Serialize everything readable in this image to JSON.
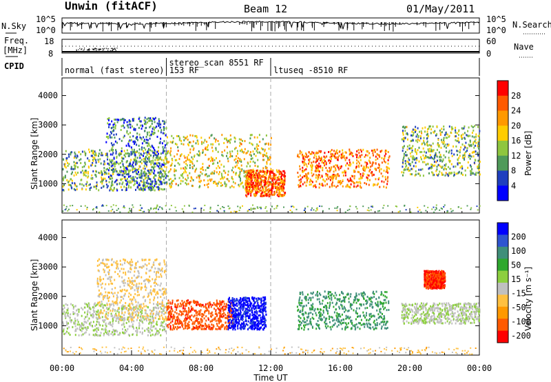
{
  "header": {
    "station": "Unwin (fitACF)",
    "beam": "Beam 12",
    "date": "01/May/2011"
  },
  "noise_panel": {
    "left_label": "N.Sky",
    "right_label": "N.Search",
    "left_ticks": [
      "10^5",
      "10^0"
    ],
    "right_ticks": [
      "10^5",
      "10^0"
    ]
  },
  "freq_panel": {
    "left_label_1": "Freq.",
    "left_label_2": "[MHz]",
    "left_ticks": [
      "18",
      "8"
    ],
    "right_label": "Nave",
    "right_ticks": [
      "60",
      "0"
    ]
  },
  "cpid": {
    "label": "CPID",
    "segments": [
      {
        "name": "normal (fast stereo) 153 RF",
        "start_hr": 0.0,
        "end_hr": 6.0
      },
      {
        "name": "stereo_scan 8551 RF",
        "start_hr": 6.0,
        "end_hr": 12.0
      },
      {
        "name": "ltuseq -8510 RF",
        "start_hr": 12.0,
        "end_hr": 24.0
      }
    ]
  },
  "power_panel": {
    "ylabel": "Slant Range [km]",
    "colorbar_label": "Power [dB]",
    "colorbar_ticks": [
      "28",
      "24",
      "20",
      "16",
      "12",
      "8",
      "4"
    ],
    "colorbar_colors": [
      "#ff0000",
      "#ff5a00",
      "#ff9900",
      "#ffcc00",
      "#8fc63f",
      "#4f9a5a",
      "#1f3fbf",
      "#0000ff"
    ]
  },
  "velocity_panel": {
    "ylabel": "Slant Range [km]",
    "colorbar_label": "Velocity [m s⁻¹]",
    "colorbar_ticks": [
      "200",
      "100",
      "50",
      "15",
      "-15",
      "-50",
      "-100",
      "-200"
    ],
    "colorbar_colors": [
      "#0000ff",
      "#2f55d0",
      "#3f8f7a",
      "#2ea82e",
      "#8dcf3f",
      "#c0c0c0",
      "#ffc040",
      "#ff9900",
      "#ff5a00",
      "#ff0000"
    ]
  },
  "x_axis": {
    "label": "Time UT",
    "ticks": [
      "00:00",
      "04:00",
      "08:00",
      "12:00",
      "16:00",
      "20:00",
      "00:00"
    ]
  },
  "y_axis_ticks": [
    "4000",
    "3000",
    "2000",
    "1000"
  ],
  "chart_data": [
    {
      "type": "heatmap",
      "title": "Power",
      "xlabel": "Time UT",
      "ylabel": "Slant Range [km]",
      "xlim_hr": [
        0,
        24
      ],
      "ylim": [
        0,
        4600
      ],
      "colorbar": {
        "label": "Power [dB]",
        "range": [
          0,
          30
        ]
      },
      "scatter_regions": [
        {
          "t_start": 0.0,
          "t_end": 6.0,
          "r_low": 800,
          "r_high": 2200,
          "power_db": 12
        },
        {
          "t_start": 2.5,
          "t_end": 6.0,
          "r_low": 800,
          "r_high": 3300,
          "power_db": 8
        },
        {
          "t_start": 6.0,
          "t_end": 12.0,
          "r_low": 900,
          "r_high": 2700,
          "power_db": 16
        },
        {
          "t_start": 10.5,
          "t_end": 12.8,
          "r_low": 600,
          "r_high": 1500,
          "power_db": 24
        },
        {
          "t_start": 13.5,
          "t_end": 18.8,
          "r_low": 900,
          "r_high": 2200,
          "power_db": 22
        },
        {
          "t_start": 19.5,
          "t_end": 24.0,
          "r_low": 1300,
          "r_high": 3000,
          "power_db": 12
        }
      ]
    },
    {
      "type": "heatmap",
      "title": "Velocity",
      "xlabel": "Time UT",
      "ylabel": "Slant Range [km]",
      "xlim_hr": [
        0,
        24
      ],
      "ylim": [
        0,
        4600
      ],
      "colorbar": {
        "label": "Velocity [m s⁻¹]",
        "range": [
          -250,
          250
        ]
      },
      "scatter_regions": [
        {
          "t_start": 0.0,
          "t_end": 6.0,
          "r_low": 700,
          "r_high": 1800,
          "velocity": -5
        },
        {
          "t_start": 2.0,
          "t_end": 6.0,
          "r_low": 1200,
          "r_high": 3300,
          "velocity": -60
        },
        {
          "t_start": 6.0,
          "t_end": 9.8,
          "r_low": 900,
          "r_high": 1900,
          "velocity": -180
        },
        {
          "t_start": 9.5,
          "t_end": 11.7,
          "r_low": 900,
          "r_high": 2000,
          "velocity": 220
        },
        {
          "t_start": 13.5,
          "t_end": 18.8,
          "r_low": 900,
          "r_high": 2200,
          "velocity": 110
        },
        {
          "t_start": 19.5,
          "t_end": 24.0,
          "r_low": 1100,
          "r_high": 1800,
          "velocity": -5
        },
        {
          "t_start": 20.8,
          "t_end": 22.0,
          "r_low": 2300,
          "r_high": 2900,
          "velocity": -200
        }
      ]
    }
  ]
}
